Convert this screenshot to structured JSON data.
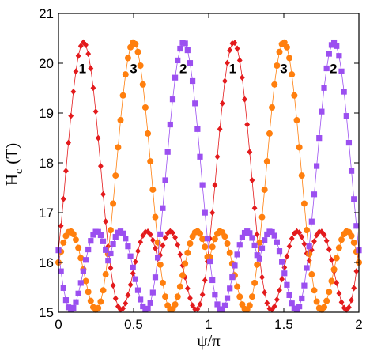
{
  "chart_data": {
    "type": "scatter",
    "xlabel": "ψ/π",
    "ylabel_main": "H",
    "ylabel_sub": "c",
    "ylabel_unit": "(T)",
    "xlim": [
      0,
      2
    ],
    "ylim": [
      15,
      21
    ],
    "x_ticks": [
      "0",
      "0.5",
      "1",
      "1.5",
      "2"
    ],
    "x_tick_values": [
      0,
      0.5,
      1,
      1.5,
      2
    ],
    "y_ticks": [
      "15",
      "16",
      "17",
      "18",
      "19",
      "20",
      "21"
    ],
    "y_tick_values": [
      15,
      16,
      17,
      18,
      19,
      20,
      21
    ],
    "grid": false,
    "curve_model": {
      "period": 1,
      "peak_value": 20.42,
      "dip_value": 15.05,
      "secondary_max_value": 16.0,
      "secondary_max_offset": 0.5
    },
    "series": [
      {
        "name": "1",
        "marker": "diamond",
        "color": "#e31a1c",
        "peak_x": [
          0.1667,
          1.1667
        ],
        "label_x": [
          0.16,
          1.16
        ],
        "label_y": 19.9
      },
      {
        "name": "3",
        "marker": "circle",
        "color": "#ff7f0e",
        "peak_x": [
          0.5,
          1.5
        ],
        "label_x": [
          0.5,
          1.5
        ],
        "label_y": 19.9
      },
      {
        "name": "2",
        "marker": "square",
        "color": "#9b4ff0",
        "peak_x": [
          0.8333,
          1.8333
        ],
        "label_x": [
          0.83,
          1.83
        ],
        "label_y": 19.9
      }
    ]
  }
}
